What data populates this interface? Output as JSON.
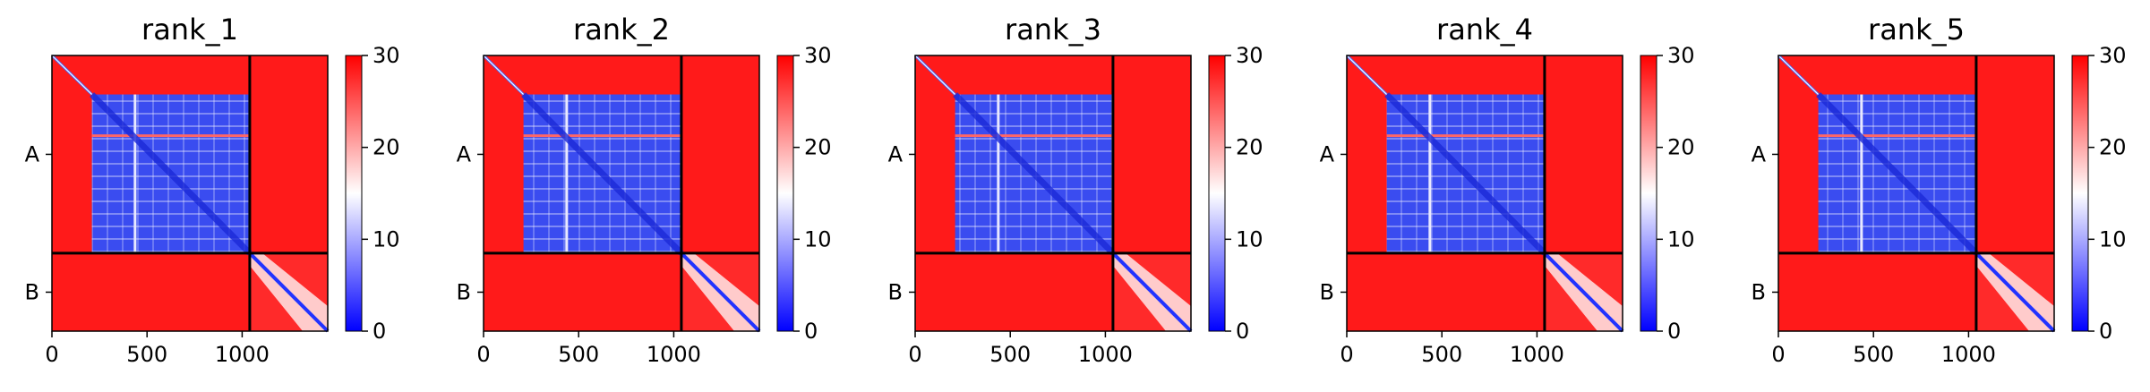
{
  "chart_data": {
    "type": "heatmap",
    "colormap": "bwr",
    "colors": {
      "low": "#0000ff",
      "mid": "#ffffff",
      "high": "#ff0000",
      "boundary": "#000000"
    },
    "chains": [
      {
        "label": "A",
        "start": 0,
        "end": 1040
      },
      {
        "label": "B",
        "start": 1040,
        "end": 1450
      }
    ],
    "xlim": [
      0,
      1450
    ],
    "xticks": [
      0,
      500,
      1000
    ],
    "colorbar": {
      "range": [
        0,
        30
      ],
      "ticks": [
        0,
        10,
        20,
        30
      ]
    },
    "panels": [
      {
        "title": "rank_1"
      },
      {
        "title": "rank_2"
      },
      {
        "title": "rank_3"
      },
      {
        "title": "rank_4"
      },
      {
        "title": "rank_5"
      }
    ]
  }
}
